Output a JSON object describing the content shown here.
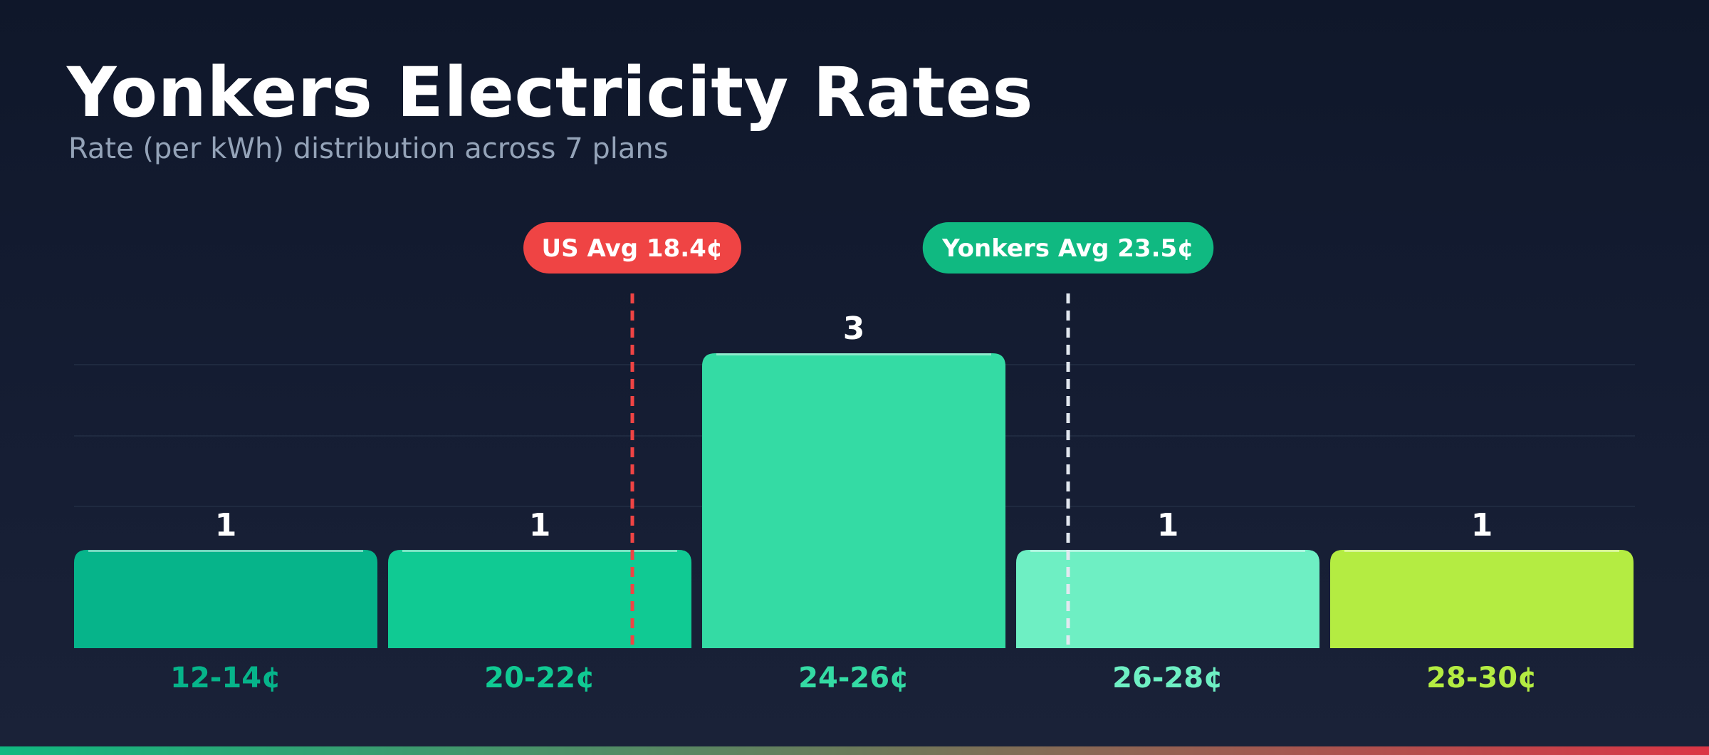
{
  "header": {
    "title": "Yonkers Electricity Rates",
    "subtitle": "Rate (per kWh) distribution across 7 plans"
  },
  "chart_data": {
    "type": "bar",
    "title": "Yonkers Electricity Rates",
    "subtitle": "Rate (per kWh) distribution across 7 plans",
    "categories": [
      "12-14¢",
      "20-22¢",
      "24-26¢",
      "26-28¢",
      "28-30¢"
    ],
    "values": [
      1,
      1,
      3,
      1,
      1
    ],
    "bar_colors": [
      "#06b48a",
      "#10ca93",
      "#34dba4",
      "#6eefc3",
      "#b4ec42"
    ],
    "ylim": [
      0,
      4
    ],
    "grid": true,
    "reference_lines": [
      {
        "label": "US Avg 18.4¢",
        "value": 18.4,
        "color": "#ef4444",
        "badge_color": "#ef4444"
      },
      {
        "label": "Yonkers Avg 23.5¢",
        "value": 23.5,
        "color": "#e2e8f0",
        "badge_color": "#10b981"
      }
    ]
  }
}
